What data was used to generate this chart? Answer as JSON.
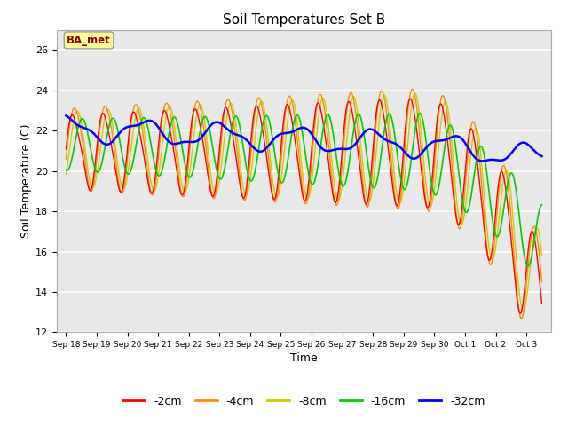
{
  "title": "Soil Temperatures Set B",
  "xlabel": "Time",
  "ylabel": "Soil Temperature (C)",
  "ylim": [
    12,
    27
  ],
  "yticks": [
    12,
    14,
    16,
    18,
    20,
    22,
    24,
    26
  ],
  "annotation": "BA_met",
  "annotation_color": "#8B0000",
  "annotation_bg": "#FFFF99",
  "plot_bg": "#E8E8E8",
  "fig_bg": "#FFFFFF",
  "series_colors": {
    "-2cm": "#FF0000",
    "-4cm": "#FF8C00",
    "-8cm": "#CCCC00",
    "-16cm": "#00CC00",
    "-32cm": "#0000FF"
  },
  "tick_labels": [
    "Sep 18",
    "Sep 19",
    "Sep 20",
    "Sep 21",
    "Sep 22",
    "Sep 23",
    "Sep 24",
    "Sep 25",
    "Sep 26",
    "Sep 27",
    "Sep 28",
    "Sep 29",
    "Sep 30",
    "Oct 1",
    "Oct 2",
    "Oct 3"
  ],
  "legend_labels": [
    "-2cm",
    "-4cm",
    "-8cm",
    "-16cm",
    "-32cm"
  ]
}
